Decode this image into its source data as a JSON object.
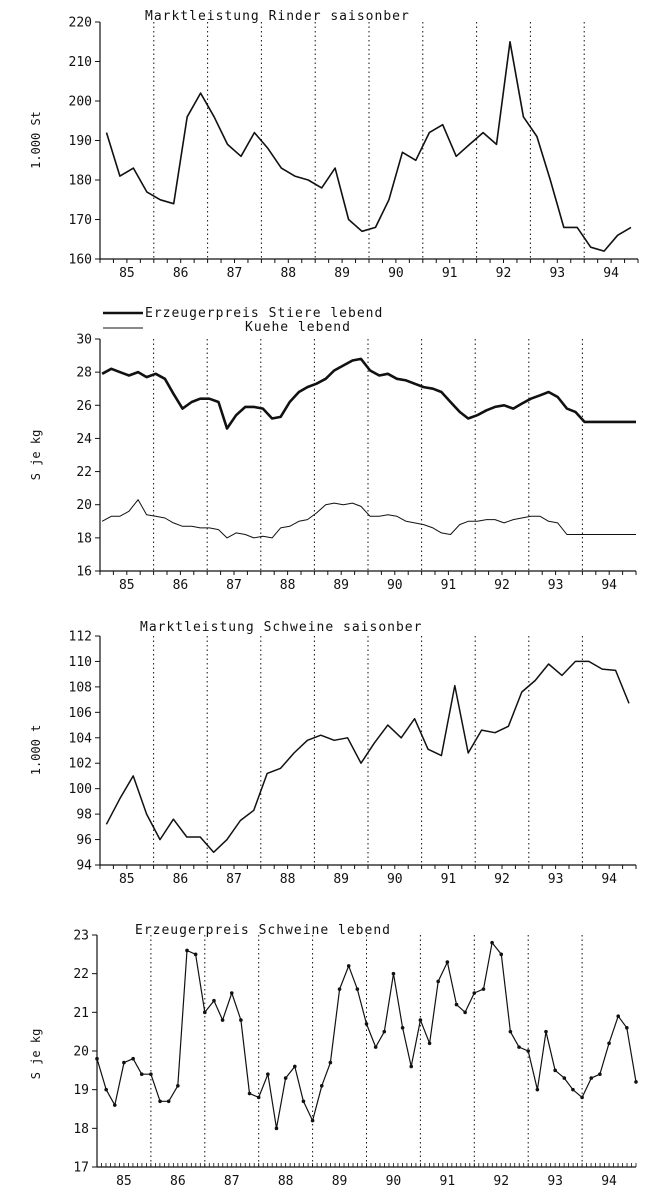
{
  "colors": {
    "ink": "#111111",
    "background": "#ffffff"
  },
  "chart_data": [
    {
      "type": "line",
      "title": "Marktleistung Rinder saisonber",
      "ylabel": "1.000 St",
      "xlabel": "",
      "x_tick_labels": [
        "85",
        "86",
        "87",
        "88",
        "89",
        "90",
        "91",
        "92",
        "93",
        "94"
      ],
      "xlim": [
        1984.5,
        1994.5
      ],
      "ylim": [
        160,
        220
      ],
      "y_ticks": [
        160,
        170,
        180,
        190,
        200,
        210,
        220
      ],
      "y_tick_labels": [
        "160",
        "170",
        "180",
        "190",
        "200",
        "210",
        "220"
      ],
      "year_dividers": [
        1985.5,
        1986.5,
        1987.5,
        1988.5,
        1989.5,
        1990.5,
        1991.5,
        1992.5,
        1993.5
      ],
      "grid": false,
      "series": [
        {
          "x": [
            1984.62,
            1984.87,
            1985.12,
            1985.37,
            1985.62,
            1985.87,
            1986.12,
            1986.37,
            1986.62,
            1986.87,
            1987.12,
            1987.37,
            1987.62,
            1987.87,
            1988.12,
            1988.37,
            1988.62,
            1988.87,
            1989.12,
            1989.37,
            1989.62,
            1989.87,
            1990.12,
            1990.37,
            1990.62,
            1990.87,
            1991.12,
            1991.37,
            1991.62,
            1991.87,
            1992.12,
            1992.37,
            1992.62,
            1992.87,
            1993.12,
            1993.37,
            1993.62,
            1993.87,
            1994.12,
            1994.37
          ],
          "values": [
            192,
            181,
            183,
            177,
            175,
            174,
            196,
            202,
            196,
            189,
            186,
            192,
            188,
            183,
            181,
            180,
            178,
            183,
            170,
            167,
            168,
            175,
            187,
            185,
            192,
            194,
            186,
            189,
            192,
            189,
            215,
            196,
            191,
            180,
            168,
            168,
            163,
            162,
            166,
            168
          ]
        }
      ]
    },
    {
      "type": "line",
      "title": "",
      "ylabel": "S je kg",
      "xlabel": "",
      "x_tick_labels": [
        "85",
        "86",
        "87",
        "88",
        "89",
        "90",
        "91",
        "92",
        "93",
        "94"
      ],
      "xlim": [
        1984.5,
        1994.5
      ],
      "ylim": [
        16,
        30
      ],
      "y_ticks": [
        16,
        18,
        20,
        22,
        24,
        26,
        28,
        30
      ],
      "y_tick_labels": [
        "16",
        "18",
        "20",
        "22",
        "24",
        "26",
        "28",
        "30"
      ],
      "year_dividers": [
        1985.5,
        1986.5,
        1987.5,
        1988.5,
        1989.5,
        1990.5,
        1991.5,
        1992.5,
        1993.5
      ],
      "grid": false,
      "legend_position": "top-left",
      "series": [
        {
          "name": "Erzeugerpreis Stiere lebend",
          "x": [
            1984.54,
            1984.71,
            1984.87,
            1985.04,
            1985.21,
            1985.37,
            1985.54,
            1985.71,
            1985.87,
            1986.04,
            1986.21,
            1986.37,
            1986.54,
            1986.71,
            1986.87,
            1987.04,
            1987.21,
            1987.37,
            1987.54,
            1987.71,
            1987.87,
            1988.04,
            1988.21,
            1988.37,
            1988.54,
            1988.71,
            1988.87,
            1989.04,
            1989.21,
            1989.37,
            1989.54,
            1989.71,
            1989.87,
            1990.04,
            1990.21,
            1990.37,
            1990.54,
            1990.71,
            1990.87,
            1991.04,
            1991.21,
            1991.37,
            1991.54,
            1991.71,
            1991.87,
            1992.04,
            1992.21,
            1992.37,
            1992.54,
            1992.71,
            1992.87,
            1993.04,
            1993.21,
            1993.37,
            1993.54,
            1993.71,
            1993.87,
            1994.04,
            1994.21,
            1994.37,
            1994.5
          ],
          "values": [
            27.9,
            28.2,
            28,
            27.8,
            28,
            27.7,
            27.9,
            27.6,
            26.7,
            25.8,
            26.2,
            26.4,
            26.4,
            26.2,
            24.6,
            25.4,
            25.9,
            25.9,
            25.8,
            25.2,
            25.3,
            26.2,
            26.8,
            27.1,
            27.3,
            27.6,
            28.1,
            28.4,
            28.7,
            28.8,
            28.1,
            27.8,
            27.9,
            27.6,
            27.5,
            27.3,
            27.1,
            27,
            26.8,
            26.2,
            25.6,
            25.2,
            25.4,
            25.7,
            25.9,
            26,
            25.8,
            26.1,
            26.4,
            26.6,
            26.8,
            26.5,
            25.8,
            25.6,
            25,
            25,
            25,
            25,
            25,
            25,
            25
          ]
        },
        {
          "name": "Kuehe lebend",
          "x": [
            1984.54,
            1984.71,
            1984.87,
            1985.04,
            1985.21,
            1985.37,
            1985.54,
            1985.71,
            1985.87,
            1986.04,
            1986.21,
            1986.37,
            1986.54,
            1986.71,
            1986.87,
            1987.04,
            1987.21,
            1987.37,
            1987.54,
            1987.71,
            1987.87,
            1988.04,
            1988.21,
            1988.37,
            1988.54,
            1988.71,
            1988.87,
            1989.04,
            1989.21,
            1989.37,
            1989.54,
            1989.71,
            1989.87,
            1990.04,
            1990.21,
            1990.37,
            1990.54,
            1990.71,
            1990.87,
            1991.04,
            1991.21,
            1991.37,
            1991.54,
            1991.71,
            1991.87,
            1992.04,
            1992.21,
            1992.37,
            1992.54,
            1992.71,
            1992.87,
            1993.04,
            1993.21,
            1993.37,
            1993.54,
            1993.71,
            1993.87,
            1994.04,
            1994.21,
            1994.37,
            1994.5
          ],
          "values": [
            19,
            19.3,
            19.3,
            19.6,
            20.3,
            19.4,
            19.3,
            19.2,
            18.9,
            18.7,
            18.7,
            18.6,
            18.6,
            18.5,
            18,
            18.3,
            18.2,
            18,
            18.1,
            18,
            18.6,
            18.7,
            19,
            19.1,
            19.5,
            20,
            20.1,
            20,
            20.1,
            19.9,
            19.3,
            19.3,
            19.4,
            19.3,
            19,
            18.9,
            18.8,
            18.6,
            18.3,
            18.2,
            18.8,
            19,
            19,
            19.1,
            19.1,
            18.9,
            19.1,
            19.2,
            19.3,
            19.3,
            19,
            18.9,
            18.2,
            18.2,
            18.2,
            18.2,
            18.2,
            18.2,
            18.2,
            18.2,
            18.2
          ]
        }
      ]
    },
    {
      "type": "line",
      "title": "Marktleistung Schweine saisonber",
      "ylabel": "1.000 t",
      "xlabel": "",
      "x_tick_labels": [
        "85",
        "86",
        "87",
        "88",
        "89",
        "90",
        "91",
        "92",
        "93",
        "94"
      ],
      "xlim": [
        1984.5,
        1994.5
      ],
      "ylim": [
        94,
        112
      ],
      "y_ticks": [
        94,
        96,
        98,
        100,
        102,
        104,
        106,
        108,
        110,
        112
      ],
      "y_tick_labels": [
        "94",
        "96",
        "98",
        "100",
        "102",
        "104",
        "106",
        "108",
        "110",
        "112"
      ],
      "year_dividers": [
        1985.5,
        1986.5,
        1987.5,
        1988.5,
        1989.5,
        1990.5,
        1991.5,
        1992.5,
        1993.5
      ],
      "grid": false,
      "series": [
        {
          "x": [
            1984.62,
            1984.87,
            1985.12,
            1985.37,
            1985.62,
            1985.87,
            1986.12,
            1986.37,
            1986.62,
            1986.87,
            1987.12,
            1987.37,
            1987.62,
            1987.87,
            1988.12,
            1988.37,
            1988.62,
            1988.87,
            1989.12,
            1989.37,
            1989.62,
            1989.87,
            1990.12,
            1990.37,
            1990.62,
            1990.87,
            1991.12,
            1991.37,
            1991.62,
            1991.87,
            1992.12,
            1992.37,
            1992.62,
            1992.87,
            1993.12,
            1993.37,
            1993.62,
            1993.87,
            1994.12,
            1994.37
          ],
          "values": [
            97.2,
            99.2,
            101,
            98,
            96,
            97.6,
            96.2,
            96.2,
            95,
            96,
            97.5,
            98.3,
            101.2,
            101.6,
            102.8,
            103.8,
            104.2,
            103.8,
            104,
            102,
            103.6,
            105,
            104,
            105.5,
            103.1,
            102.6,
            108.1,
            102.8,
            104.6,
            104.4,
            104.9,
            107.6,
            108.5,
            109.8,
            108.9,
            110,
            110,
            109.4,
            109.3,
            106.7
          ]
        }
      ]
    },
    {
      "type": "line",
      "title": "Erzeugerpreis Schweine lebend",
      "ylabel": "S je kg",
      "xlabel": "",
      "x_tick_labels": [
        "85",
        "86",
        "87",
        "88",
        "89",
        "90",
        "91",
        "92",
        "93",
        "94"
      ],
      "xlim": [
        1984.5,
        1994.5
      ],
      "ylim": [
        17,
        23
      ],
      "y_ticks": [
        17,
        18,
        19,
        20,
        21,
        22,
        23
      ],
      "y_tick_labels": [
        "17",
        "18",
        "19",
        "20",
        "21",
        "22",
        "23"
      ],
      "year_dividers": [
        1985.5,
        1986.5,
        1987.5,
        1988.5,
        1989.5,
        1990.5,
        1991.5,
        1992.5,
        1993.5
      ],
      "grid": false,
      "series": [
        {
          "x": [
            1984.5,
            1984.67,
            1984.83,
            1985,
            1985.17,
            1985.33,
            1985.5,
            1985.67,
            1985.83,
            1986,
            1986.17,
            1986.33,
            1986.5,
            1986.67,
            1986.83,
            1987,
            1987.17,
            1987.33,
            1987.5,
            1987.67,
            1987.83,
            1988,
            1988.17,
            1988.33,
            1988.5,
            1988.67,
            1988.83,
            1989,
            1989.17,
            1989.33,
            1989.5,
            1989.67,
            1989.83,
            1990,
            1990.17,
            1990.33,
            1990.5,
            1990.67,
            1990.83,
            1991,
            1991.17,
            1991.33,
            1991.5,
            1991.67,
            1991.83,
            1992,
            1992.17,
            1992.33,
            1992.5,
            1992.67,
            1992.83,
            1993,
            1993.17,
            1993.33,
            1993.5,
            1993.67,
            1993.83,
            1994,
            1994.17,
            1994.33,
            1994.5
          ],
          "values": [
            19.8,
            19,
            18.6,
            19.7,
            19.8,
            19.4,
            19.4,
            18.7,
            18.7,
            19.1,
            22.6,
            22.5,
            21,
            21.3,
            20.8,
            21.5,
            20.8,
            18.9,
            18.8,
            19.4,
            18.0,
            19.3,
            19.6,
            18.7,
            18.2,
            19.1,
            19.7,
            21.6,
            22.2,
            21.6,
            20.7,
            20.1,
            20.5,
            22.0,
            20.6,
            19.6,
            20.8,
            20.2,
            21.8,
            22.3,
            21.2,
            21.0,
            21.5,
            21.6,
            22.8,
            22.5,
            20.5,
            20.1,
            20.0,
            19.0,
            20.5,
            19.5,
            19.3,
            19.0,
            18.8,
            19.3,
            19.4,
            20.2,
            20.9,
            20.6,
            19.2
          ]
        }
      ]
    }
  ]
}
